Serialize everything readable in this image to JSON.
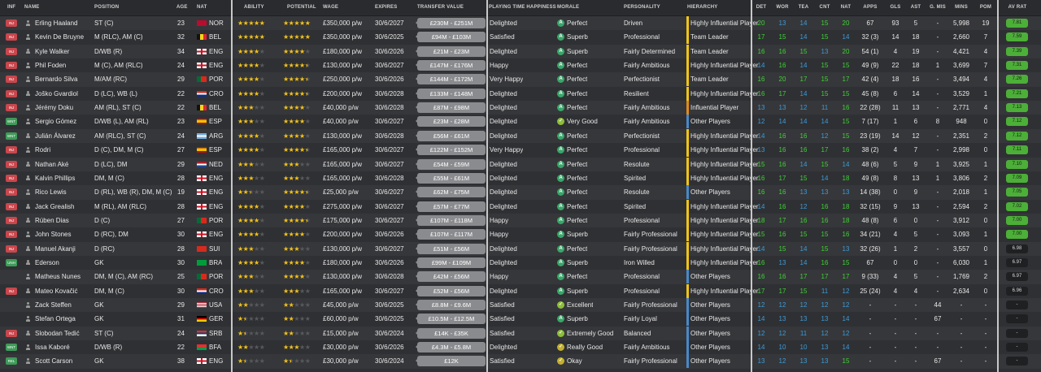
{
  "colors": {
    "perfect": "#3aa56a",
    "superb": "#3aa56a",
    "very_good": "#8dbf3a",
    "excellent": "#8dbf3a",
    "extremely_good": "#8dbf3a",
    "really_good": "#c2b130",
    "okay": "#c2b130",
    "hier_hip": "#f0c419",
    "hier_leader": "#f0c419",
    "hier_ip": "#e08a1e",
    "hier_other": "#4a88c9",
    "attr_green": "#3fd136",
    "attr_blue": "#3c9bd8",
    "avr_green": "#4caf38"
  },
  "headers": {
    "inf": "INF",
    "name": "NAME",
    "position": "POSITION",
    "age": "AGE",
    "nat": "NAT",
    "ability": "ABILITY",
    "potential": "POTENTIAL",
    "wage": "WAGE",
    "expires": "EXPIRES",
    "transfer_value": "TRANSFER VALUE",
    "playing_time": "PLAYING TIME HAPPINESS",
    "morale": "MORALE",
    "personality": "PERSONALITY",
    "hierarchy": "HIERARCHY",
    "det": "DET",
    "wor": "WOR",
    "tea": "TEA",
    "cnt": "CNT",
    "nat2": "NAT",
    "apps": "APPS",
    "gls": "GLS",
    "ast": "AST",
    "gmis": "G. MIS",
    "mins": "MINS",
    "pom": "POM",
    "avrat": "AV RAT"
  },
  "players": [
    {
      "inf": "INJ",
      "inf_color": "red",
      "name": "Erling Haaland",
      "position": "ST (C)",
      "age": "23",
      "nat": "NOR",
      "ability": 5,
      "potential": 5,
      "wage": "£350,000 p/w",
      "expires": "30/6/2027",
      "tv": "£230M - £251M",
      "happy": "Delighted",
      "morale": "Perfect",
      "morale_key": "perfect",
      "personality": "Driven",
      "hierarchy": "Highly Influential Player",
      "hier_key": "hier_hip",
      "det": "20",
      "wor": "13",
      "tea": "14",
      "cnt": "15",
      "nat2": "20",
      "apps": "67",
      "gls": "93",
      "ast": "5",
      "gmis": "-",
      "mins": "5,998",
      "pom": "19",
      "avrat": "7.81"
    },
    {
      "inf": "INJ",
      "inf_color": "red",
      "name": "Kevin De Bruyne",
      "position": "M (RLC), AM (C)",
      "age": "32",
      "nat": "BEL",
      "ability": 5,
      "potential": 5,
      "wage": "£350,000 p/w",
      "expires": "30/6/2025",
      "tv": "£94M - £103M",
      "happy": "Satisfied",
      "morale": "Superb",
      "morale_key": "superb",
      "personality": "Professional",
      "hierarchy": "Team Leader",
      "hier_key": "hier_leader",
      "det": "17",
      "wor": "15",
      "tea": "14",
      "cnt": "15",
      "nat2": "14",
      "apps": "32 (3)",
      "gls": "14",
      "ast": "18",
      "gmis": "-",
      "mins": "2,660",
      "pom": "7",
      "avrat": "7.59"
    },
    {
      "inf": "INJ",
      "inf_color": "red",
      "name": "Kyle Walker",
      "position": "D/WB (R)",
      "age": "34",
      "nat": "ENG",
      "ability": 4,
      "potential": 4,
      "wage": "£180,000 p/w",
      "expires": "30/6/2026",
      "tv": "£21M - £23M",
      "happy": "Delighted",
      "morale": "Superb",
      "morale_key": "superb",
      "personality": "Fairly Determined",
      "hierarchy": "Team Leader",
      "hier_key": "hier_leader",
      "det": "16",
      "wor": "16",
      "tea": "15",
      "cnt": "13",
      "nat2": "20",
      "apps": "54 (1)",
      "gls": "4",
      "ast": "19",
      "gmis": "-",
      "mins": "4,421",
      "pom": "4",
      "avrat": "7.39"
    },
    {
      "inf": "INJ",
      "inf_color": "red",
      "name": "Phil Foden",
      "position": "M (C), AM (RLC)",
      "age": "24",
      "nat": "ENG",
      "ability": 4,
      "potential": 4.5,
      "wage": "£130,000 p/w",
      "expires": "30/6/2027",
      "tv": "£147M - £176M",
      "happy": "Happy",
      "morale": "Perfect",
      "morale_key": "perfect",
      "personality": "Fairly Ambitious",
      "hierarchy": "Highly Influential Player",
      "hier_key": "hier_hip",
      "det": "14",
      "wor": "16",
      "tea": "14",
      "cnt": "15",
      "nat2": "15",
      "apps": "49 (9)",
      "gls": "22",
      "ast": "18",
      "gmis": "1",
      "mins": "3,699",
      "pom": "7",
      "avrat": "7.31"
    },
    {
      "inf": "INJ",
      "inf_color": "red",
      "name": "Bernardo Silva",
      "position": "M/AM (RC)",
      "age": "29",
      "nat": "POR",
      "ability": 4,
      "potential": 4.5,
      "wage": "£250,000 p/w",
      "expires": "30/6/2026",
      "tv": "£144M - £172M",
      "happy": "Very Happy",
      "morale": "Perfect",
      "morale_key": "perfect",
      "personality": "Perfectionist",
      "hierarchy": "Team Leader",
      "hier_key": "hier_leader",
      "det": "16",
      "wor": "20",
      "tea": "17",
      "cnt": "15",
      "nat2": "17",
      "apps": "42 (4)",
      "gls": "18",
      "ast": "16",
      "gmis": "-",
      "mins": "3,494",
      "pom": "4",
      "avrat": "7.26"
    },
    {
      "inf": "INJ",
      "inf_color": "red",
      "name": "Joško Gvardiol",
      "position": "D (LC), WB (L)",
      "age": "22",
      "nat": "CRO",
      "ability": 4,
      "potential": 4.5,
      "wage": "£200,000 p/w",
      "expires": "30/6/2028",
      "tv": "£133M - £148M",
      "happy": "Delighted",
      "morale": "Perfect",
      "morale_key": "perfect",
      "personality": "Resilient",
      "hierarchy": "Highly Influential Player",
      "hier_key": "hier_hip",
      "det": "16",
      "wor": "17",
      "tea": "14",
      "cnt": "15",
      "nat2": "15",
      "apps": "45 (8)",
      "gls": "6",
      "ast": "14",
      "gmis": "-",
      "mins": "3,529",
      "pom": "1",
      "avrat": "7.21"
    },
    {
      "inf": "INJ",
      "inf_color": "red",
      "name": "Jérémy Doku",
      "position": "AM (RL), ST (C)",
      "age": "22",
      "nat": "BEL",
      "ability": 3,
      "potential": 4,
      "wage": "£40,000 p/w",
      "expires": "30/6/2028",
      "tv": "£87M - £98M",
      "happy": "Delighted",
      "morale": "Perfect",
      "morale_key": "perfect",
      "personality": "Fairly Ambitious",
      "hierarchy": "Influential Player",
      "hier_key": "hier_ip",
      "det": "13",
      "wor": "13",
      "tea": "12",
      "cnt": "11",
      "nat2": "16",
      "apps": "22 (28)",
      "gls": "11",
      "ast": "13",
      "gmis": "-",
      "mins": "2,771",
      "pom": "4",
      "avrat": "7.13"
    },
    {
      "inf": "WNT",
      "inf_color": "green",
      "name": "Sergio Gómez",
      "position": "D/WB (L), AM (RL)",
      "age": "23",
      "nat": "ESP",
      "ability": 3,
      "potential": 4,
      "wage": "£40,000 p/w",
      "expires": "30/6/2027",
      "tv": "£23M - £28M",
      "happy": "Delighted",
      "morale": "Very Good",
      "morale_key": "very_good",
      "personality": "Fairly Ambitious",
      "hierarchy": "Other Players",
      "hier_key": "hier_other",
      "det": "12",
      "wor": "14",
      "tea": "14",
      "cnt": "14",
      "nat2": "15",
      "apps": "7 (17)",
      "gls": "1",
      "ast": "6",
      "gmis": "8",
      "mins": "948",
      "pom": "0",
      "avrat": "7.12"
    },
    {
      "inf": "WNT",
      "inf_color": "green",
      "name": "Julián Álvarez",
      "position": "AM (RLC), ST (C)",
      "age": "24",
      "nat": "ARG",
      "ability": 4,
      "potential": 4,
      "wage": "£130,000 p/w",
      "expires": "30/6/2028",
      "tv": "£56M - £61M",
      "happy": "Delighted",
      "morale": "Perfect",
      "morale_key": "perfect",
      "personality": "Perfectionist",
      "hierarchy": "Highly Influential Player",
      "hier_key": "hier_hip",
      "det": "14",
      "wor": "16",
      "tea": "16",
      "cnt": "12",
      "nat2": "15",
      "apps": "23 (19)",
      "gls": "14",
      "ast": "12",
      "gmis": "-",
      "mins": "2,351",
      "pom": "2",
      "avrat": "7.12"
    },
    {
      "inf": "INJ",
      "inf_color": "red",
      "name": "Rodri",
      "position": "D (C), DM, M (C)",
      "age": "27",
      "nat": "ESP",
      "ability": 4,
      "potential": 4.5,
      "wage": "£165,000 p/w",
      "expires": "30/6/2027",
      "tv": "£122M - £152M",
      "happy": "Very Happy",
      "morale": "Perfect",
      "morale_key": "perfect",
      "personality": "Professional",
      "hierarchy": "Highly Influential Player",
      "hier_key": "hier_hip",
      "det": "13",
      "wor": "16",
      "tea": "16",
      "cnt": "17",
      "nat2": "16",
      "apps": "38 (2)",
      "gls": "4",
      "ast": "7",
      "gmis": "-",
      "mins": "2,998",
      "pom": "0",
      "avrat": "7.11"
    },
    {
      "inf": "INJ",
      "inf_color": "red",
      "name": "Nathan Aké",
      "position": "D (LC), DM",
      "age": "29",
      "nat": "NED",
      "ability": 3,
      "potential": 3,
      "wage": "£165,000 p/w",
      "expires": "30/6/2027",
      "tv": "£54M - £59M",
      "happy": "Delighted",
      "morale": "Perfect",
      "morale_key": "perfect",
      "personality": "Resolute",
      "hierarchy": "Highly Influential Player",
      "hier_key": "hier_hip",
      "det": "15",
      "wor": "16",
      "tea": "14",
      "cnt": "15",
      "nat2": "14",
      "apps": "48 (6)",
      "gls": "5",
      "ast": "9",
      "gmis": "1",
      "mins": "3,925",
      "pom": "1",
      "avrat": "7.10"
    },
    {
      "inf": "INJ",
      "inf_color": "red",
      "name": "Kalvin Phillips",
      "position": "DM, M (C)",
      "age": "28",
      "nat": "ENG",
      "ability": 3,
      "potential": 3,
      "wage": "£165,000 p/w",
      "expires": "30/6/2028",
      "tv": "£55M - £61M",
      "happy": "Delighted",
      "morale": "Perfect",
      "morale_key": "perfect",
      "personality": "Spirited",
      "hierarchy": "Highly Influential Player",
      "hier_key": "hier_hip",
      "det": "16",
      "wor": "17",
      "tea": "15",
      "cnt": "14",
      "nat2": "18",
      "apps": "49 (8)",
      "gls": "8",
      "ast": "13",
      "gmis": "1",
      "mins": "3,806",
      "pom": "2",
      "avrat": "7.09"
    },
    {
      "inf": "INJ",
      "inf_color": "red",
      "name": "Rico Lewis",
      "position": "D (RL), WB (R), DM, M (C)",
      "age": "19",
      "nat": "ENG",
      "ability": 2.5,
      "potential": 4.5,
      "wage": "£25,000 p/w",
      "expires": "30/6/2027",
      "tv": "£62M - £75M",
      "happy": "Delighted",
      "morale": "Perfect",
      "morale_key": "perfect",
      "personality": "Resolute",
      "hierarchy": "Other Players",
      "hier_key": "hier_other",
      "det": "16",
      "wor": "16",
      "tea": "13",
      "cnt": "13",
      "nat2": "13",
      "apps": "14 (38)",
      "gls": "0",
      "ast": "9",
      "gmis": "-",
      "mins": "2,018",
      "pom": "1",
      "avrat": "7.05"
    },
    {
      "inf": "INJ",
      "inf_color": "red",
      "name": "Jack Grealish",
      "position": "M (RL), AM (RLC)",
      "age": "28",
      "nat": "ENG",
      "ability": 4,
      "potential": 4,
      "wage": "£275,000 p/w",
      "expires": "30/6/2027",
      "tv": "£57M - £77M",
      "happy": "Delighted",
      "morale": "Perfect",
      "morale_key": "perfect",
      "personality": "Spirited",
      "hierarchy": "Highly Influential Player",
      "hier_key": "hier_hip",
      "det": "14",
      "wor": "16",
      "tea": "12",
      "cnt": "16",
      "nat2": "18",
      "apps": "32 (15)",
      "gls": "9",
      "ast": "13",
      "gmis": "-",
      "mins": "2,594",
      "pom": "2",
      "avrat": "7.02"
    },
    {
      "inf": "INJ",
      "inf_color": "red",
      "name": "Rúben Dias",
      "position": "D (C)",
      "age": "27",
      "nat": "POR",
      "ability": 4,
      "potential": 4.5,
      "wage": "£175,000 p/w",
      "expires": "30/6/2027",
      "tv": "£107M - £118M",
      "happy": "Happy",
      "morale": "Perfect",
      "morale_key": "perfect",
      "personality": "Professional",
      "hierarchy": "Highly Influential Player",
      "hier_key": "hier_hip",
      "det": "18",
      "wor": "17",
      "tea": "16",
      "cnt": "16",
      "nat2": "18",
      "apps": "48 (8)",
      "gls": "6",
      "ast": "0",
      "gmis": "-",
      "mins": "3,912",
      "pom": "0",
      "avrat": "7.00"
    },
    {
      "inf": "INJ",
      "inf_color": "red",
      "name": "John Stones",
      "position": "D (RC), DM",
      "age": "30",
      "nat": "ENG",
      "ability": 4,
      "potential": 4,
      "wage": "£200,000 p/w",
      "expires": "30/6/2026",
      "tv": "£107M - £117M",
      "happy": "Happy",
      "morale": "Superb",
      "morale_key": "superb",
      "personality": "Fairly Professional",
      "hierarchy": "Highly Influential Player",
      "hier_key": "hier_hip",
      "det": "15",
      "wor": "16",
      "tea": "15",
      "cnt": "15",
      "nat2": "16",
      "apps": "34 (21)",
      "gls": "4",
      "ast": "5",
      "gmis": "-",
      "mins": "3,093",
      "pom": "1",
      "avrat": "7.00"
    },
    {
      "inf": "INJ",
      "inf_color": "red",
      "name": "Manuel Akanji",
      "position": "D (RC)",
      "age": "28",
      "nat": "SUI",
      "ability": 3,
      "potential": 3,
      "wage": "£130,000 p/w",
      "expires": "30/6/2027",
      "tv": "£51M - £56M",
      "happy": "Delighted",
      "morale": "Perfect",
      "morale_key": "perfect",
      "personality": "Fairly Professional",
      "hierarchy": "Highly Influential Player",
      "hier_key": "hier_hip",
      "det": "14",
      "wor": "15",
      "tea": "14",
      "cnt": "15",
      "nat2": "13",
      "apps": "32 (26)",
      "gls": "1",
      "ast": "2",
      "gmis": "-",
      "mins": "3,557",
      "pom": "0",
      "avrat": "6.98"
    },
    {
      "inf": "UNH",
      "inf_color": "green",
      "name": "Ederson",
      "position": "GK",
      "age": "30",
      "nat": "BRA",
      "ability": 4,
      "potential": 4,
      "wage": "£180,000 p/w",
      "expires": "30/6/2026",
      "tv": "£99M - £109M",
      "happy": "Delighted",
      "morale": "Superb",
      "morale_key": "superb",
      "personality": "Iron Willed",
      "hierarchy": "Highly Influential Player",
      "hier_key": "hier_hip",
      "det": "16",
      "wor": "13",
      "tea": "14",
      "cnt": "16",
      "nat2": "15",
      "apps": "67",
      "gls": "0",
      "ast": "0",
      "gmis": "-",
      "mins": "6,030",
      "pom": "1",
      "avrat": "6.97"
    },
    {
      "inf": "",
      "inf_color": "",
      "name": "Matheus Nunes",
      "position": "DM, M (C), AM (RC)",
      "age": "25",
      "nat": "POR",
      "ability": 3,
      "potential": 4,
      "wage": "£130,000 p/w",
      "expires": "30/6/2028",
      "tv": "£42M - £56M",
      "happy": "Happy",
      "morale": "Perfect",
      "morale_key": "perfect",
      "personality": "Professional",
      "hierarchy": "Other Players",
      "hier_key": "hier_other",
      "det": "16",
      "wor": "16",
      "tea": "17",
      "cnt": "17",
      "nat2": "17",
      "apps": "9 (33)",
      "gls": "4",
      "ast": "5",
      "gmis": "-",
      "mins": "1,769",
      "pom": "2",
      "avrat": "6.97"
    },
    {
      "inf": "INJ",
      "inf_color": "red",
      "name": "Mateo Kovačić",
      "position": "DM, M (C)",
      "age": "30",
      "nat": "CRO",
      "ability": 3,
      "potential": 3,
      "wage": "£165,000 p/w",
      "expires": "30/6/2027",
      "tv": "£52M - £56M",
      "happy": "Delighted",
      "morale": "Superb",
      "morale_key": "superb",
      "personality": "Professional",
      "hierarchy": "Highly Influential Player",
      "hier_key": "hier_hip",
      "det": "17",
      "wor": "17",
      "tea": "15",
      "cnt": "11",
      "nat2": "12",
      "apps": "25 (24)",
      "gls": "4",
      "ast": "4",
      "gmis": "-",
      "mins": "2,634",
      "pom": "0",
      "avrat": "6.96"
    },
    {
      "inf": "",
      "inf_color": "",
      "name": "Zack Steffen",
      "position": "GK",
      "age": "29",
      "nat": "USA",
      "ability": 2,
      "potential": 2,
      "wage": "£45,000 p/w",
      "expires": "30/6/2025",
      "tv": "£8.8M - £9.6M",
      "happy": "Satisfied",
      "morale": "Excellent",
      "morale_key": "excellent",
      "personality": "Fairly Professional",
      "hierarchy": "Other Players",
      "hier_key": "hier_other",
      "det": "12",
      "wor": "12",
      "tea": "12",
      "cnt": "12",
      "nat2": "12",
      "apps": "-",
      "gls": "-",
      "ast": "-",
      "gmis": "44",
      "mins": "-",
      "pom": "-",
      "avrat": "-"
    },
    {
      "inf": "",
      "inf_color": "",
      "name": "Stefan Ortega",
      "position": "GK",
      "age": "31",
      "nat": "GER",
      "ability": 1.5,
      "potential": 2,
      "wage": "£60,000 p/w",
      "expires": "30/6/2025",
      "tv": "£10.5M - £12.5M",
      "happy": "Satisfied",
      "morale": "Superb",
      "morale_key": "superb",
      "personality": "Fairly Loyal",
      "hierarchy": "Other Players",
      "hier_key": "hier_other",
      "det": "14",
      "wor": "13",
      "tea": "13",
      "cnt": "13",
      "nat2": "14",
      "apps": "-",
      "gls": "-",
      "ast": "-",
      "gmis": "67",
      "mins": "-",
      "pom": "-",
      "avrat": "-"
    },
    {
      "inf": "INJ",
      "inf_color": "red",
      "name": "Slobodan Tedić",
      "position": "ST (C)",
      "age": "24",
      "nat": "SRB",
      "ability": 1.5,
      "potential": 2,
      "wage": "£15,000 p/w",
      "expires": "30/6/2024",
      "tv": "£14K - £35K",
      "happy": "Satisfied",
      "morale": "Extremely Good",
      "morale_key": "extremely_good",
      "personality": "Balanced",
      "hierarchy": "Other Players",
      "hier_key": "hier_other",
      "det": "12",
      "wor": "12",
      "tea": "11",
      "cnt": "12",
      "nat2": "12",
      "apps": "-",
      "gls": "-",
      "ast": "-",
      "gmis": "-",
      "mins": "-",
      "pom": "-",
      "avrat": "-"
    },
    {
      "inf": "WNT",
      "inf_color": "green",
      "name": "Issa Kaboré",
      "position": "D/WB (R)",
      "age": "22",
      "nat": "BFA",
      "ability": 2,
      "potential": 3,
      "wage": "£30,000 p/w",
      "expires": "30/6/2026",
      "tv": "£4.3M - £5.8M",
      "happy": "Delighted",
      "morale": "Really Good",
      "morale_key": "really_good",
      "personality": "Fairly Ambitious",
      "hierarchy": "Other Players",
      "hier_key": "hier_other",
      "det": "14",
      "wor": "10",
      "tea": "10",
      "cnt": "13",
      "nat2": "14",
      "apps": "-",
      "gls": "-",
      "ast": "-",
      "gmis": "-",
      "mins": "-",
      "pom": "-",
      "avrat": "-"
    },
    {
      "inf": "REL",
      "inf_color": "green",
      "name": "Scott Carson",
      "position": "GK",
      "age": "38",
      "nat": "ENG",
      "ability": 1.5,
      "potential": 1.5,
      "wage": "£30,000 p/w",
      "expires": "30/6/2024",
      "tv": "£12K",
      "happy": "Satisfied",
      "morale": "Okay",
      "morale_key": "okay",
      "personality": "Fairly Professional",
      "hierarchy": "Other Players",
      "hier_key": "hier_other",
      "det": "13",
      "wor": "12",
      "tea": "13",
      "cnt": "13",
      "nat2": "15",
      "apps": "-",
      "gls": "-",
      "ast": "-",
      "gmis": "67",
      "mins": "-",
      "pom": "-",
      "avrat": "-"
    }
  ]
}
